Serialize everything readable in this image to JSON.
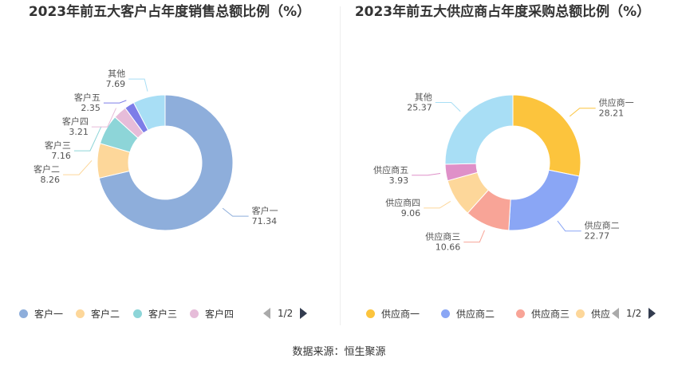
{
  "source": "数据来源：恒生聚源",
  "chart_data": [
    {
      "type": "pie",
      "title": "2023年前五大客户占年度销售总额比例（%）",
      "labels": [
        "客户一",
        "客户二",
        "客户三",
        "客户四",
        "客户五",
        "其他"
      ],
      "values": [
        71.34,
        8.26,
        7.16,
        3.21,
        2.35,
        7.69
      ],
      "colors": [
        "#8eaedb",
        "#fdd79a",
        "#8dd5d8",
        "#e6bcd9",
        "#7d7de8",
        "#a8def5"
      ],
      "legend": {
        "position": "bottom",
        "items": [
          "客户一",
          "客户二",
          "客户三",
          "客户四"
        ],
        "page": "1/2"
      }
    },
    {
      "type": "pie",
      "title": "2023年前五大供应商占年度采购总额比例（%）",
      "labels": [
        "供应商一",
        "供应商二",
        "供应商三",
        "供应商四",
        "供应商五",
        "其他"
      ],
      "values": [
        28.21,
        22.77,
        10.66,
        9.06,
        3.93,
        25.37
      ],
      "colors": [
        "#fcc43d",
        "#8aa6f5",
        "#f8a497",
        "#fdd79a",
        "#df90c8",
        "#a8def5"
      ],
      "legend": {
        "position": "bottom",
        "items": [
          "供应商一",
          "供应商二",
          "供应商三",
          "供应"
        ],
        "page": "1/2"
      }
    }
  ]
}
